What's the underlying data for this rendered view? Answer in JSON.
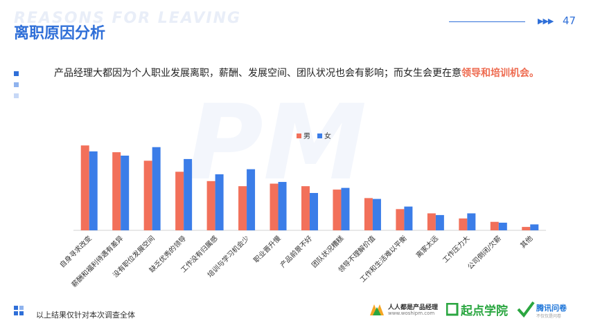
{
  "header": {
    "bg_title": "REASONS FOR LEAVING",
    "title": "离职原因分析",
    "page_number": "47"
  },
  "summary": {
    "text_plain": "产品经理大都因为个人职业发展离职，薪酬、发展空间、团队状况也会有影响；而女生会更在意",
    "text_highlight": "领导和培训机会。"
  },
  "watermark": "PM",
  "footer": {
    "note": "以上结果仅针对本次调查全体",
    "logo1_text": "人人都是产品经理",
    "logo1_url": "www.woshipm.com",
    "logo2_text": "起点学院",
    "logo3_text": "腾讯问卷",
    "logo3_sub": "不仅仅是问卷"
  },
  "colors": {
    "male": "#f2705a",
    "female": "#3b7de8",
    "accent": "#2f6fd8",
    "highlight": "#ee6b50"
  },
  "chart_data": {
    "type": "bar",
    "categories": [
      "自身寻求改变",
      "薪酬和福利待遇有差异",
      "没有职位发展空间",
      "缺乏优秀的领导",
      "工作没有归属感",
      "培训与学习机会少",
      "职业晋升慢",
      "产品前景不好",
      "团队状况糟糕",
      "领导不理解价值",
      "工作和生活难以平衡",
      "离家太远",
      "工作压力大",
      "公司倒闭/欠薪",
      "其他"
    ],
    "series": [
      {
        "name": "男",
        "values": [
          100,
          92,
          82,
          69,
          58,
          52,
          55,
          52,
          48,
          38,
          25,
          20,
          14,
          10,
          4
        ]
      },
      {
        "name": "女",
        "values": [
          93,
          88,
          98,
          84,
          66,
          72,
          57,
          44,
          50,
          37,
          28,
          18,
          20,
          9,
          7
        ]
      }
    ],
    "legend_position": "top-center",
    "grid": false,
    "ylim": [
      0,
      110
    ]
  }
}
